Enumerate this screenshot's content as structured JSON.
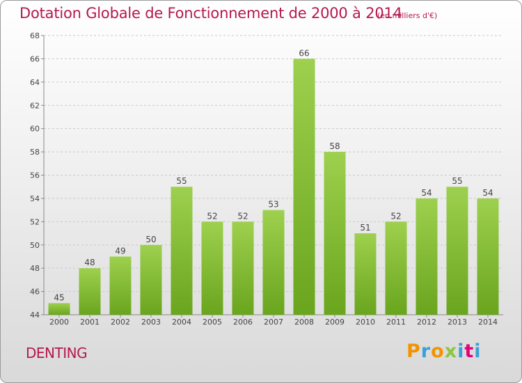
{
  "header": {
    "title": "Dotation Globale de Fonctionnement de 2000 à 2014",
    "subtitle": "(en milliers d'€)"
  },
  "footer": {
    "commune": "DENTING",
    "logo_letters": [
      "P",
      "r",
      "o",
      "x",
      "i",
      "t",
      "i"
    ],
    "logo_colors": [
      "#f29400",
      "#3aa0d8",
      "#f29400",
      "#8cc63f",
      "#3aa0d8",
      "#e4007c",
      "#3aa0d8"
    ]
  },
  "colors": {
    "bar_light": "#9dd04e",
    "bar_dark": "#6aa51e",
    "title": "#b5174f",
    "grid": "#c9c9c9"
  },
  "chart_data": {
    "type": "bar",
    "categories": [
      "2000",
      "2001",
      "2002",
      "2003",
      "2004",
      "2005",
      "2006",
      "2007",
      "2008",
      "2009",
      "2010",
      "2011",
      "2012",
      "2013",
      "2014"
    ],
    "values": [
      45,
      48,
      49,
      50,
      55,
      52,
      52,
      53,
      66,
      58,
      51,
      52,
      54,
      55,
      54
    ],
    "ylim": [
      44,
      68
    ],
    "yticks": [
      44,
      46,
      48,
      50,
      52,
      54,
      56,
      58,
      60,
      62,
      64,
      66,
      68
    ],
    "grid": "horizontal dashed",
    "xlabel": "",
    "ylabel": ""
  }
}
